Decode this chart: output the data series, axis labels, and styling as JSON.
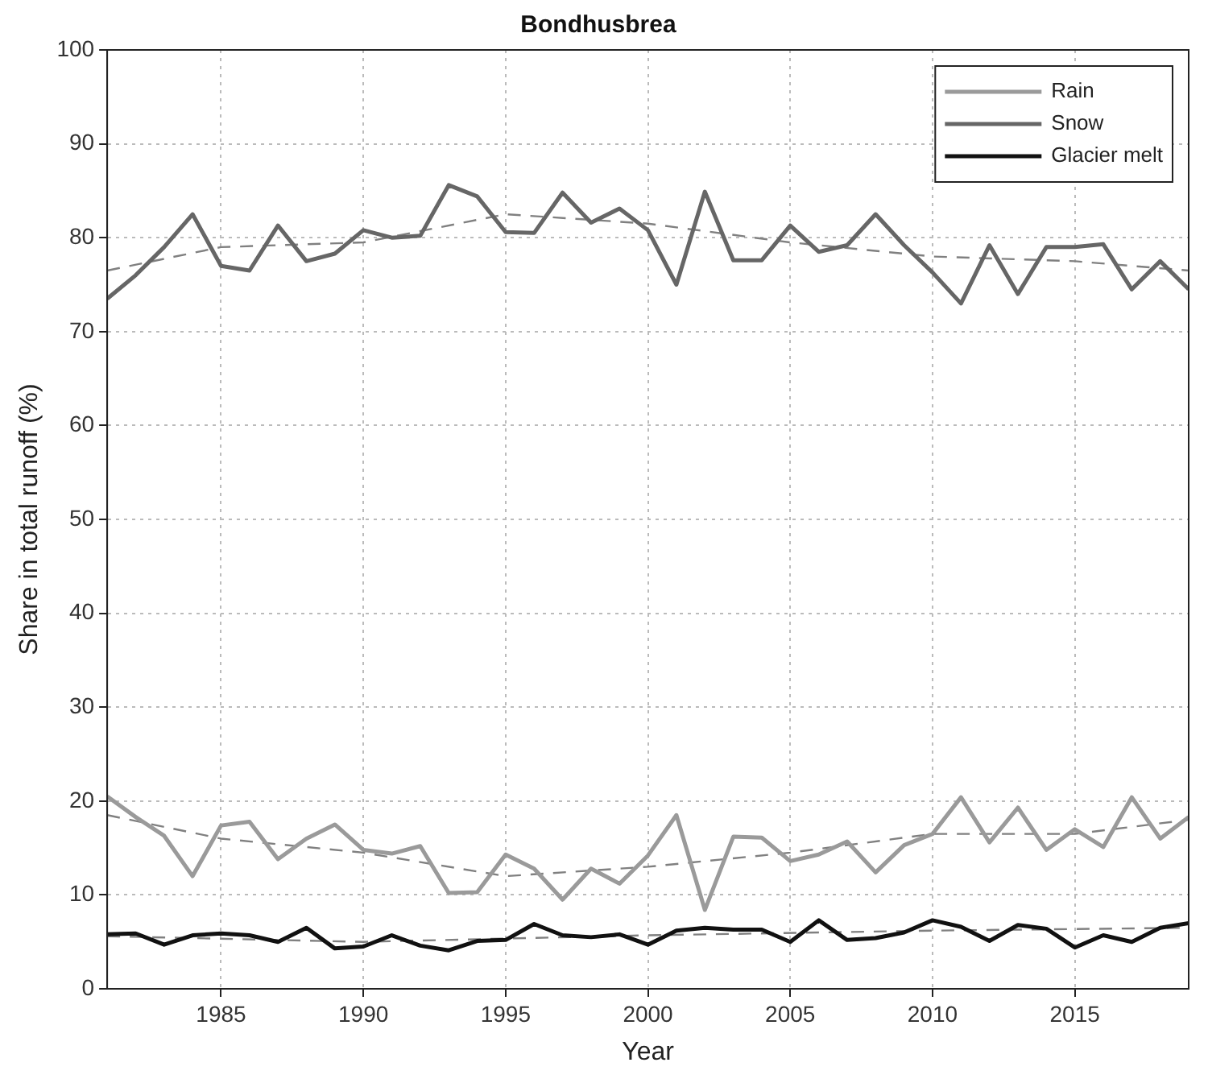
{
  "chart_data": {
    "type": "line",
    "title": "Bondhusbrea",
    "xlabel": "Year",
    "ylabel": "Share in total runoff (%)",
    "x": [
      1981,
      1982,
      1983,
      1984,
      1985,
      1986,
      1987,
      1988,
      1989,
      1990,
      1991,
      1992,
      1993,
      1994,
      1995,
      1996,
      1997,
      1998,
      1999,
      2000,
      2001,
      2002,
      2003,
      2004,
      2005,
      2006,
      2007,
      2008,
      2009,
      2010,
      2011,
      2012,
      2013,
      2014,
      2015,
      2016,
      2017,
      2018,
      2019
    ],
    "xlim": [
      1981,
      2019
    ],
    "xticks": [
      1985,
      1990,
      1995,
      2000,
      2005,
      2010,
      2015
    ],
    "ylim": [
      0,
      100
    ],
    "yticks": [
      0,
      10,
      20,
      30,
      40,
      50,
      60,
      70,
      80,
      90,
      100
    ],
    "grid": true,
    "legend": "top right",
    "marker": "none",
    "line_style": "solid",
    "series": [
      {
        "name": "Rain",
        "color": "#9a9a9a",
        "values": [
          20.5,
          18.3,
          16.3,
          12,
          17.4,
          17.8,
          13.8,
          16,
          17.5,
          14.8,
          14.4,
          15.2,
          10.2,
          10.3,
          14.3,
          12.8,
          9.5,
          12.8,
          11.2,
          14.2,
          18.5,
          8.4,
          16.2,
          16.1,
          13.6,
          14.3,
          15.7,
          12.4,
          15.3,
          16.5,
          20.4,
          15.6,
          19.3,
          14.8,
          17,
          15.1,
          20.4,
          16,
          18.3
        ]
      },
      {
        "name": "Snow",
        "color": "#666666",
        "values": [
          73.5,
          76,
          79,
          82.5,
          77,
          76.5,
          81.3,
          77.5,
          78.3,
          80.8,
          80,
          80.2,
          85.6,
          84.4,
          80.6,
          80.5,
          84.8,
          81.6,
          83.1,
          80.8,
          75,
          84.9,
          77.6,
          77.6,
          81.3,
          78.5,
          79.2,
          82.5,
          79.2,
          76.3,
          73,
          79.2,
          74,
          79,
          79,
          79.3,
          74.5,
          77.5,
          74.5
        ]
      },
      {
        "name": "Glacier melt",
        "color": "#111111",
        "values": [
          5.8,
          5.9,
          4.7,
          5.7,
          5.9,
          5.7,
          5,
          6.5,
          4.3,
          4.5,
          5.7,
          4.6,
          4.1,
          5.1,
          5.2,
          6.9,
          5.7,
          5.5,
          5.8,
          4.7,
          6.2,
          6.5,
          6.3,
          6.3,
          5,
          7.3,
          5.2,
          5.4,
          6,
          7.3,
          6.6,
          5.1,
          6.8,
          6.4,
          4.4,
          5.7,
          5,
          6.5,
          7
        ]
      },
      {
        "color": "#808080",
        "line_style": "dashed",
        "x": [
          1981,
          1985,
          1990,
          1995,
          2000,
          2005,
          2010,
          2015,
          2019
        ],
        "values": [
          18.5,
          16,
          14.5,
          12,
          13,
          14.5,
          16.5,
          16.5,
          18
        ]
      },
      {
        "color": "#808080",
        "line_style": "dashed",
        "x": [
          1981,
          1985,
          1990,
          1995,
          2000,
          2005,
          2010,
          2015,
          2019
        ],
        "values": [
          76.5,
          79,
          79.5,
          82.5,
          81.5,
          79.5,
          78,
          77.5,
          76.5
        ]
      },
      {
        "color": "#808080",
        "line_style": "dashed",
        "x": [
          1981,
          1990,
          2000,
          2010,
          2019
        ],
        "values": [
          5.6,
          5,
          5.7,
          6.2,
          6.5
        ]
      }
    ]
  }
}
